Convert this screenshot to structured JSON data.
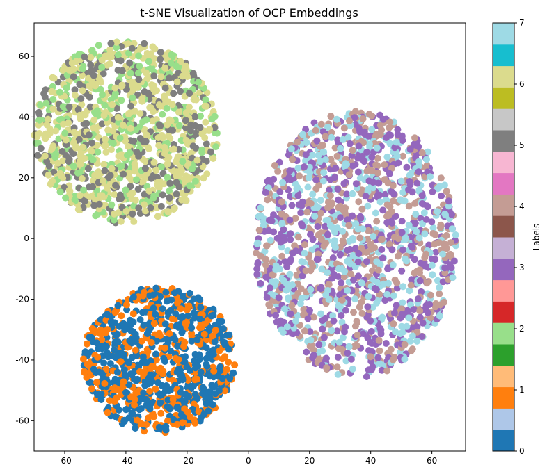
{
  "chart_data": {
    "type": "scatter",
    "title": "t-SNE Visualization of OCP Embeddings",
    "xlabel": "",
    "ylabel": "",
    "xlim": [
      -70,
      71
    ],
    "ylim": [
      -70,
      71
    ],
    "xticks": [
      -60,
      -40,
      -20,
      0,
      20,
      40,
      60
    ],
    "yticks": [
      -60,
      -40,
      -20,
      0,
      20,
      40,
      60
    ],
    "grid": false,
    "colormap": "tab20",
    "colorbar": {
      "label": "Labels",
      "range": [
        0,
        7
      ],
      "ticks": [
        0,
        1,
        2,
        3,
        4,
        5,
        6,
        7
      ],
      "colors": [
        "#1f77b4",
        "#aec7e8",
        "#ff7f0e",
        "#ffbb78",
        "#2ca02c",
        "#98df8a",
        "#d62728",
        "#ff9896",
        "#9467bd",
        "#c5b0d5",
        "#8c564b",
        "#c49c94",
        "#e377c2",
        "#f7b6d2",
        "#7f7f7f",
        "#c7c7c7",
        "#bcbd22",
        "#dbdb8d",
        "#17becf",
        "#9edae5"
      ]
    },
    "clusters": [
      {
        "center": [
          -29,
          -40
        ],
        "radius": [
          25,
          24
        ],
        "labels": [
          0,
          1
        ],
        "colors": [
          "#1f77b4",
          "#ff7f0e"
        ],
        "weights": [
          0.6,
          0.4
        ],
        "approx_points": 900
      },
      {
        "center": [
          -40,
          35
        ],
        "radius": [
          30,
          30
        ],
        "labels": [
          5,
          6,
          7
        ],
        "colors": [
          "#7f7f7f",
          "#dbdb8d",
          "#98df8a"
        ],
        "weights": [
          0.25,
          0.5,
          0.25
        ],
        "approx_points": 1200
      },
      {
        "center": [
          35,
          -2
        ],
        "radius": [
          33,
          44
        ],
        "labels": [
          3,
          4,
          7
        ],
        "colors": [
          "#9467bd",
          "#c49c94",
          "#9edae5"
        ],
        "weights": [
          0.38,
          0.32,
          0.3
        ],
        "approx_points": 1500
      }
    ]
  }
}
